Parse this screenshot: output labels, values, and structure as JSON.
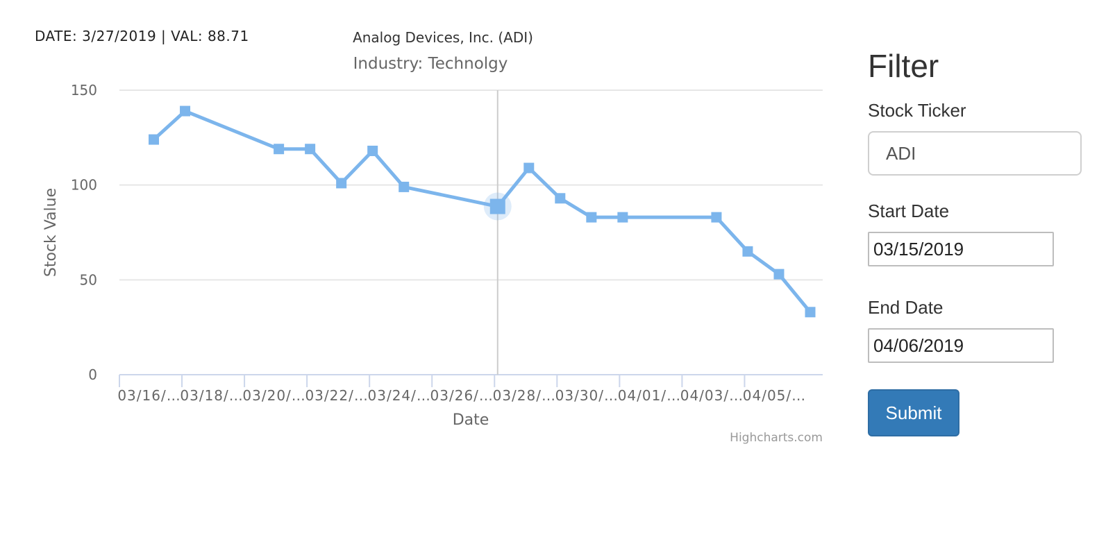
{
  "readout": "DATE: 3/27/2019 | VAL: 88.71",
  "chart_data": {
    "type": "line",
    "title": "Analog Devices, Inc. (ADI)",
    "subtitle": "Industry: Technolgy",
    "xlabel": "Date",
    "ylabel": "Stock Value",
    "credits": "Highcharts.com",
    "ylim": [
      0,
      150
    ],
    "yticks": [
      "0",
      "50",
      "100",
      "150"
    ],
    "xtick_labels": [
      "03/16/…",
      "03/18/…",
      "03/20/…",
      "03/22/…",
      "03/24/…",
      "03/26/…",
      "03/28/…",
      "03/30/…",
      "04/01/…",
      "04/03/…",
      "04/05/…"
    ],
    "x_dates": [
      "2019-03-16",
      "2019-03-17",
      "2019-03-20",
      "2019-03-21",
      "2019-03-22",
      "2019-03-23",
      "2019-03-24",
      "2019-03-27",
      "2019-03-28",
      "2019-03-29",
      "2019-03-30",
      "2019-03-31",
      "2019-04-03",
      "2019-04-04",
      "2019-04-05",
      "2019-04-06"
    ],
    "values": [
      124,
      139,
      119,
      119,
      101,
      118,
      99,
      88.71,
      109,
      93,
      83,
      83,
      83,
      65,
      53,
      33
    ],
    "highlighted_date": "2019-03-27",
    "series_color": "#7cb5ec",
    "grid": true
  },
  "filter": {
    "title": "Filter",
    "ticker_label": "Stock Ticker",
    "ticker_value": "ADI",
    "start_label": "Start Date",
    "start_value": "03/15/2019",
    "end_label": "End Date",
    "end_value": "04/06/2019",
    "submit_label": "Submit"
  }
}
